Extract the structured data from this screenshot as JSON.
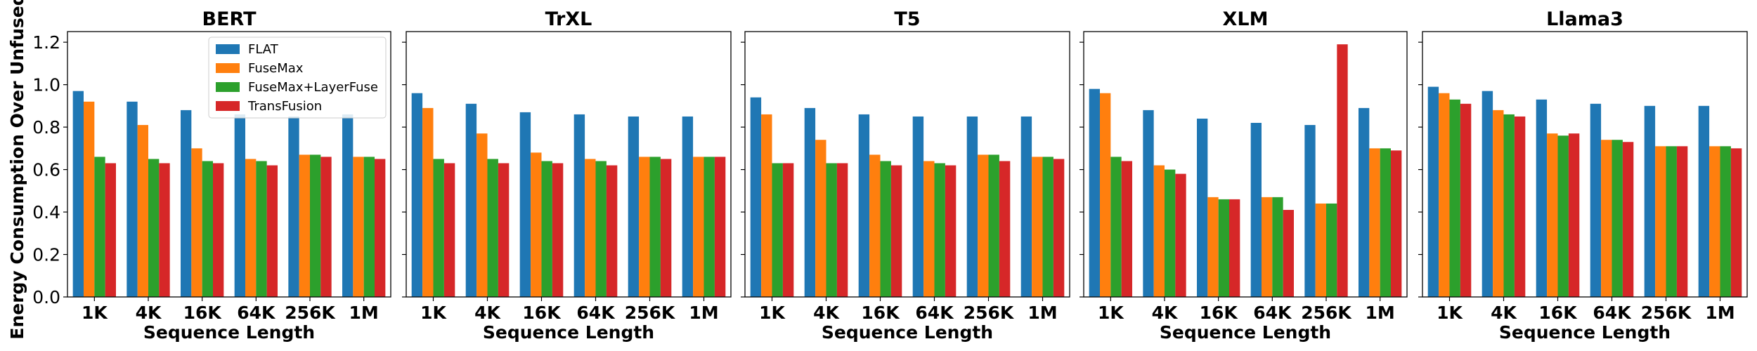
{
  "figure": {
    "ylabel": "Energy Consumption Over Unfused",
    "xlabel": "Sequence Length",
    "legend_placement": "upper-right of first panel",
    "series_colors": {
      "FLAT": "#1f77b4",
      "FuseMax": "#ff7f0e",
      "FuseMax+LayerFuse": "#2ca02c",
      "TransFusion": "#d62728"
    }
  },
  "chart_data": [
    {
      "type": "bar",
      "title": "BERT",
      "xlabel": "Sequence Length",
      "ylabel": "Energy Consumption Over Unfused",
      "categories": [
        "1K",
        "4K",
        "16K",
        "64K",
        "256K",
        "1M"
      ],
      "ylim": [
        0,
        1.25
      ],
      "yticks": [
        "0.0",
        "0.2",
        "0.4",
        "0.6",
        "0.8",
        "1.0",
        "1.2"
      ],
      "grid": false,
      "legend": "upper-right",
      "series": [
        {
          "name": "FLAT",
          "color": "#1f77b4",
          "values": [
            0.97,
            0.92,
            0.88,
            0.86,
            0.85,
            0.86
          ]
        },
        {
          "name": "FuseMax",
          "color": "#ff7f0e",
          "values": [
            0.92,
            0.81,
            0.7,
            0.65,
            0.67,
            0.66
          ]
        },
        {
          "name": "FuseMax+LayerFuse",
          "color": "#2ca02c",
          "values": [
            0.66,
            0.65,
            0.64,
            0.64,
            0.67,
            0.66
          ]
        },
        {
          "name": "TransFusion",
          "color": "#d62728",
          "values": [
            0.63,
            0.63,
            0.63,
            0.62,
            0.66,
            0.65
          ]
        }
      ]
    },
    {
      "type": "bar",
      "title": "TrXL",
      "xlabel": "Sequence Length",
      "categories": [
        "1K",
        "4K",
        "16K",
        "64K",
        "256K",
        "1M"
      ],
      "ylim": [
        0,
        1.25
      ],
      "grid": false,
      "series": [
        {
          "name": "FLAT",
          "color": "#1f77b4",
          "values": [
            0.96,
            0.91,
            0.87,
            0.86,
            0.85,
            0.85
          ]
        },
        {
          "name": "FuseMax",
          "color": "#ff7f0e",
          "values": [
            0.89,
            0.77,
            0.68,
            0.65,
            0.66,
            0.66
          ]
        },
        {
          "name": "FuseMax+LayerFuse",
          "color": "#2ca02c",
          "values": [
            0.65,
            0.65,
            0.64,
            0.64,
            0.66,
            0.66
          ]
        },
        {
          "name": "TransFusion",
          "color": "#d62728",
          "values": [
            0.63,
            0.63,
            0.63,
            0.62,
            0.65,
            0.66
          ]
        }
      ]
    },
    {
      "type": "bar",
      "title": "T5",
      "xlabel": "Sequence Length",
      "categories": [
        "1K",
        "4K",
        "16K",
        "64K",
        "256K",
        "1M"
      ],
      "ylim": [
        0,
        1.25
      ],
      "grid": false,
      "series": [
        {
          "name": "FLAT",
          "color": "#1f77b4",
          "values": [
            0.94,
            0.89,
            0.86,
            0.85,
            0.85,
            0.85
          ]
        },
        {
          "name": "FuseMax",
          "color": "#ff7f0e",
          "values": [
            0.86,
            0.74,
            0.67,
            0.64,
            0.67,
            0.66
          ]
        },
        {
          "name": "FuseMax+LayerFuse",
          "color": "#2ca02c",
          "values": [
            0.63,
            0.63,
            0.64,
            0.63,
            0.67,
            0.66
          ]
        },
        {
          "name": "TransFusion",
          "color": "#d62728",
          "values": [
            0.63,
            0.63,
            0.62,
            0.62,
            0.64,
            0.65
          ]
        }
      ]
    },
    {
      "type": "bar",
      "title": "XLM",
      "xlabel": "Sequence Length",
      "categories": [
        "1K",
        "4K",
        "16K",
        "64K",
        "256K",
        "1M"
      ],
      "ylim": [
        0,
        1.25
      ],
      "grid": false,
      "series": [
        {
          "name": "FLAT",
          "color": "#1f77b4",
          "values": [
            0.98,
            0.88,
            0.84,
            0.82,
            0.81,
            0.89
          ]
        },
        {
          "name": "FuseMax",
          "color": "#ff7f0e",
          "values": [
            0.96,
            0.62,
            0.47,
            0.47,
            0.44,
            0.7
          ]
        },
        {
          "name": "FuseMax+LayerFuse",
          "color": "#2ca02c",
          "values": [
            0.66,
            0.6,
            0.46,
            0.47,
            0.44,
            0.7
          ]
        },
        {
          "name": "TransFusion",
          "color": "#d62728",
          "values": [
            0.64,
            0.58,
            0.46,
            0.41,
            1.19,
            0.69
          ]
        }
      ]
    },
    {
      "type": "bar",
      "title": "Llama3",
      "xlabel": "Sequence Length",
      "categories": [
        "1K",
        "4K",
        "16K",
        "64K",
        "256K",
        "1M"
      ],
      "ylim": [
        0,
        1.25
      ],
      "grid": false,
      "series": [
        {
          "name": "FLAT",
          "color": "#1f77b4",
          "values": [
            0.99,
            0.97,
            0.93,
            0.91,
            0.9,
            0.9
          ]
        },
        {
          "name": "FuseMax",
          "color": "#ff7f0e",
          "values": [
            0.96,
            0.88,
            0.77,
            0.74,
            0.71,
            0.71
          ]
        },
        {
          "name": "FuseMax+LayerFuse",
          "color": "#2ca02c",
          "values": [
            0.93,
            0.86,
            0.76,
            0.74,
            0.71,
            0.71
          ]
        },
        {
          "name": "TransFusion",
          "color": "#d62728",
          "values": [
            0.91,
            0.85,
            0.77,
            0.73,
            0.71,
            0.7
          ]
        }
      ]
    }
  ]
}
